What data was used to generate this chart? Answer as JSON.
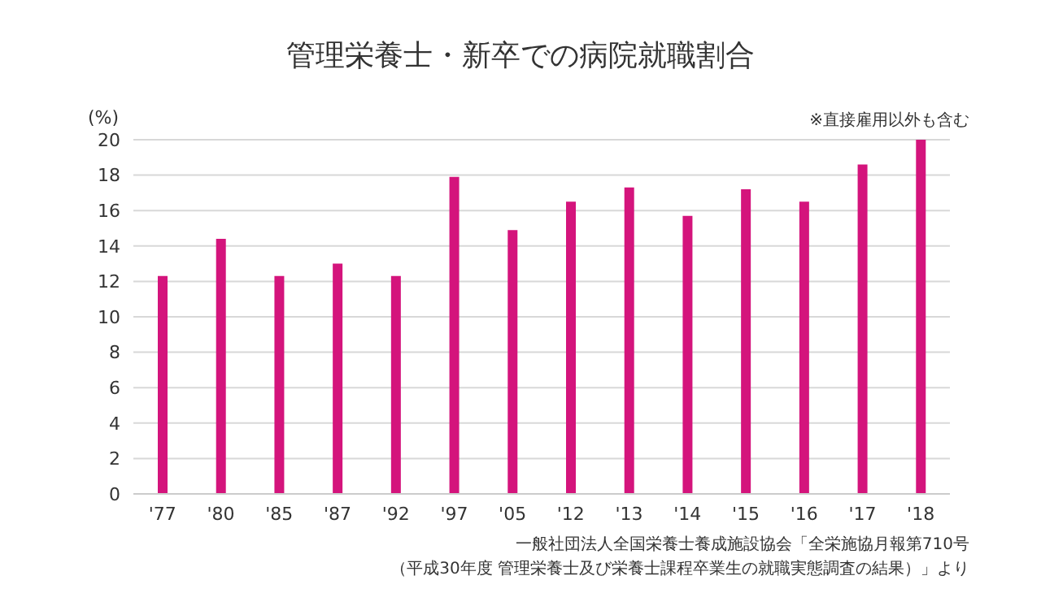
{
  "chart_data": {
    "type": "bar",
    "title": "管理栄養士・新卒での病院就職割合",
    "ylabel": "(%)",
    "categories": [
      "'77",
      "'80",
      "'85",
      "'87",
      "'92",
      "'97",
      "'05",
      "'12",
      "'13",
      "'14",
      "'15",
      "'16",
      "'17",
      "'18"
    ],
    "values": [
      12.3,
      14.4,
      12.3,
      13.0,
      12.3,
      17.9,
      14.9,
      16.5,
      17.3,
      15.7,
      17.2,
      16.5,
      18.6,
      20.0
    ],
    "color": "#d4147c",
    "ylim": [
      0,
      20
    ],
    "yticks": [
      0,
      2,
      4,
      6,
      8,
      10,
      12,
      14,
      16,
      18,
      20
    ],
    "grid": "y",
    "legend": false,
    "annotations": [
      "※直接雇用以外も含む",
      "一般社団法人全国栄養士養成施設協会「全栄施協月報第710号",
      "（平成30年度 管理栄養士及び栄養士課程卒業生の就職実態調査の結果）」より"
    ]
  }
}
